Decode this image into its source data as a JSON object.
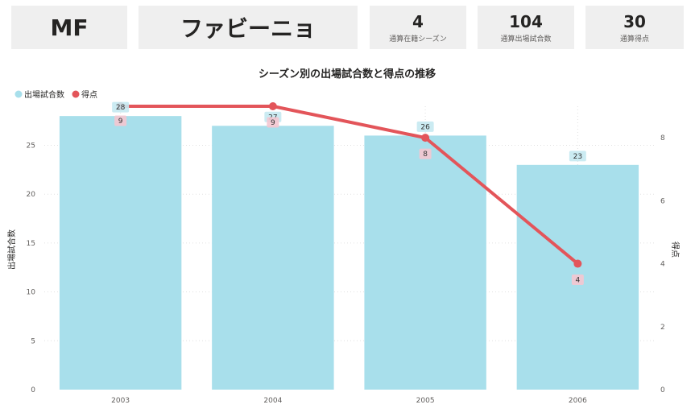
{
  "cards": {
    "position": "MF",
    "player_name": "ファビーニョ",
    "seasons": {
      "value": "4",
      "label": "通算在籍シーズン"
    },
    "appearances": {
      "value": "104",
      "label": "通算出場試合数"
    },
    "goals": {
      "value": "30",
      "label": "通算得点"
    }
  },
  "chart_data": {
    "type": "bar",
    "title": "シーズン別の出場試合数と得点の推移",
    "categories": [
      "2003",
      "2004",
      "2005",
      "2006"
    ],
    "series": [
      {
        "name": "出場試合数",
        "type": "bar",
        "axis": "left",
        "values": [
          28,
          27,
          26,
          23
        ],
        "color": "#a8dfeb"
      },
      {
        "name": "得点",
        "type": "line",
        "axis": "right",
        "values": [
          9,
          9,
          8,
          4
        ],
        "color": "#e3555a"
      }
    ],
    "ylabel": "出場試合数",
    "ylabel_right": "得点",
    "ylim": [
      0,
      29
    ],
    "ylim_right": [
      0,
      9
    ],
    "yticks": [
      0,
      5,
      10,
      15,
      20,
      25
    ],
    "yticks_right": [
      0,
      2,
      4,
      6,
      8
    ],
    "legend_position": "top-left",
    "grid": true
  }
}
